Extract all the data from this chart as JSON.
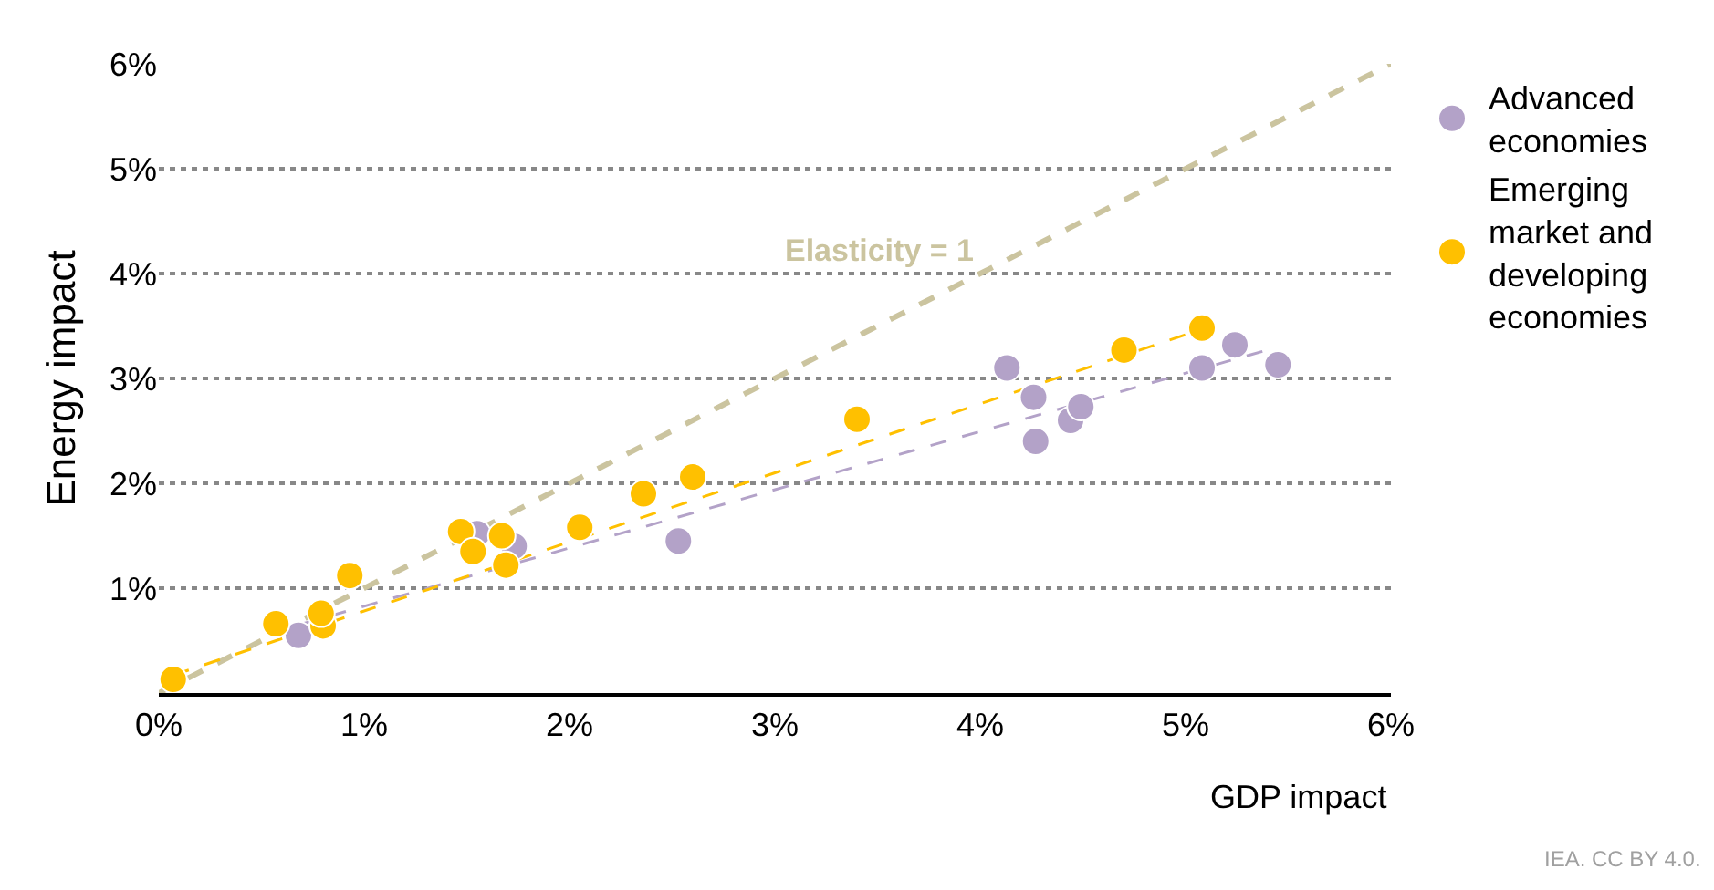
{
  "chart_data": {
    "type": "scatter",
    "xlabel": "GDP impact",
    "ylabel": "Energy impact",
    "xlim": [
      0,
      6
    ],
    "ylim": [
      0,
      6
    ],
    "xticks": [
      {
        "value": 0,
        "label": "0%"
      },
      {
        "value": 1,
        "label": "1%"
      },
      {
        "value": 2,
        "label": "2%"
      },
      {
        "value": 3,
        "label": "3%"
      },
      {
        "value": 4,
        "label": "4%"
      },
      {
        "value": 5,
        "label": "5%"
      },
      {
        "value": 6,
        "label": "6%"
      }
    ],
    "yticks": [
      {
        "value": 1,
        "label": "1%"
      },
      {
        "value": 2,
        "label": "2%"
      },
      {
        "value": 3,
        "label": "3%"
      },
      {
        "value": 4,
        "label": "4%"
      },
      {
        "value": 5,
        "label": "5%"
      },
      {
        "value": 6,
        "label": "6%"
      }
    ],
    "grid": "y",
    "legend": "right",
    "marker": "circle",
    "series": [
      {
        "type": "line",
        "marker": "none",
        "color": "#cbc49f",
        "line_style": "dashed",
        "x": [
          0,
          6
        ],
        "values": [
          0,
          6
        ]
      },
      {
        "type": "line",
        "marker": "none",
        "color": "#b3a2c8",
        "line_style": "dashed",
        "x": [
          0.68,
          5.45
        ],
        "values": [
          0.65,
          3.3
        ]
      },
      {
        "type": "line",
        "marker": "none",
        "color": "#ffc000",
        "line_style": "dashed",
        "x": [
          0.07,
          5.08
        ],
        "values": [
          0.17,
          3.47
        ]
      },
      {
        "name": "Advanced economies",
        "color": "#b3a2c8",
        "x": [
          0.68,
          1.55,
          1.73,
          2.53,
          4.13,
          4.26,
          4.27,
          4.44,
          4.49,
          5.08,
          5.24,
          5.45
        ],
        "values": [
          0.55,
          1.52,
          1.4,
          1.45,
          3.1,
          2.82,
          2.4,
          2.6,
          2.73,
          3.1,
          3.32,
          3.13
        ]
      },
      {
        "name": "Emerging market and developing economies",
        "color": "#ffc000",
        "x": [
          0.07,
          0.57,
          0.8,
          0.79,
          0.93,
          1.47,
          1.53,
          1.67,
          1.69,
          2.05,
          2.36,
          2.6,
          3.4,
          4.7,
          5.08
        ],
        "values": [
          0.13,
          0.66,
          0.64,
          0.76,
          1.12,
          1.54,
          1.35,
          1.5,
          1.22,
          1.58,
          1.9,
          2.06,
          2.61,
          3.27,
          3.48
        ]
      }
    ],
    "annotations": [
      "Elasticity = 1",
      "IEA. CC BY 4.0."
    ]
  }
}
